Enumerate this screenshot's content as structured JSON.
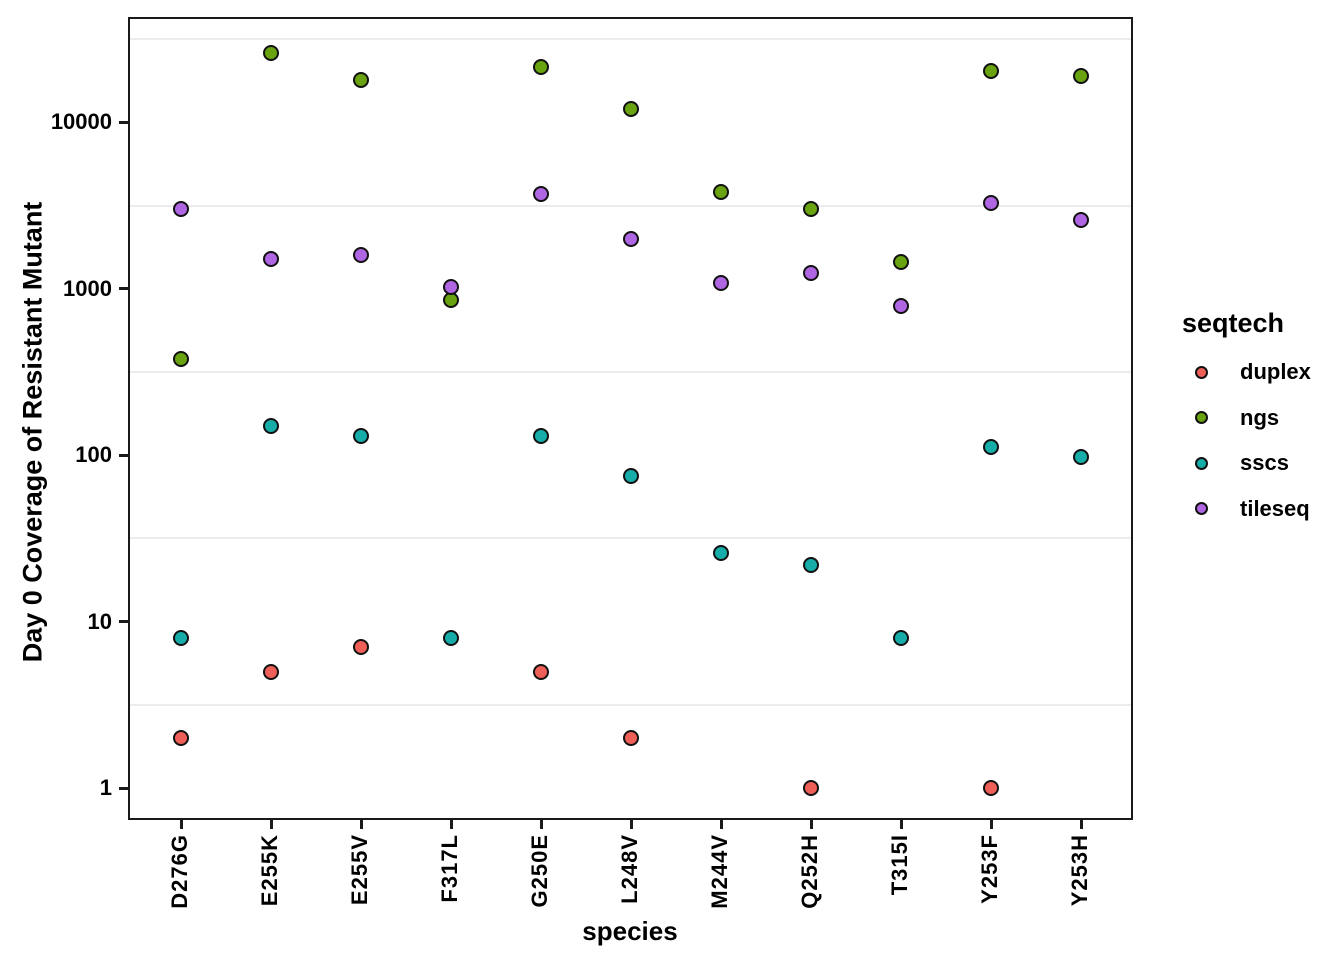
{
  "chart_data": {
    "type": "scatter",
    "title": "",
    "xlabel": "species",
    "ylabel": "Day 0 Coverage of Resistant Mutant",
    "x_type": "categorical",
    "y_scale": "log10",
    "ylim": [
      0.65,
      44000
    ],
    "grid": "minor_halfdecade_only",
    "gridline_color": "#ececec",
    "categories": [
      "D276G",
      "E255K",
      "E255V",
      "F317L",
      "G250E",
      "L248V",
      "M244V",
      "Q252H",
      "T315I",
      "Y253F",
      "Y253H"
    ],
    "y_ticks": [
      10000,
      1000,
      100,
      10,
      1
    ],
    "y_tick_labels": [
      "10000",
      "1000",
      "100",
      "10",
      "1"
    ],
    "minor_gridlines": [
      31623,
      3162.3,
      316.23,
      31.623,
      3.1623
    ],
    "legend_position": "right",
    "legend_title": "seqtech",
    "marker": "filled-circle-black-outline",
    "series": [
      {
        "name": "duplex",
        "color": "#EE5F58",
        "values": [
          2,
          5,
          7,
          null,
          5,
          2,
          null,
          1,
          null,
          1,
          null
        ]
      },
      {
        "name": "ngs",
        "color": "#69A310",
        "values": [
          380,
          26000,
          18000,
          860,
          21500,
          12000,
          3800,
          3000,
          1450,
          20500,
          19000
        ]
      },
      {
        "name": "sscs",
        "color": "#16ACA8",
        "values": [
          8,
          150,
          130,
          8,
          130,
          75,
          26,
          22,
          8,
          112,
          97
        ]
      },
      {
        "name": "tileseq",
        "color": "#B066E2",
        "values": [
          3000,
          1500,
          1600,
          1030,
          3700,
          2000,
          1080,
          1250,
          790,
          3300,
          2600
        ]
      }
    ]
  }
}
